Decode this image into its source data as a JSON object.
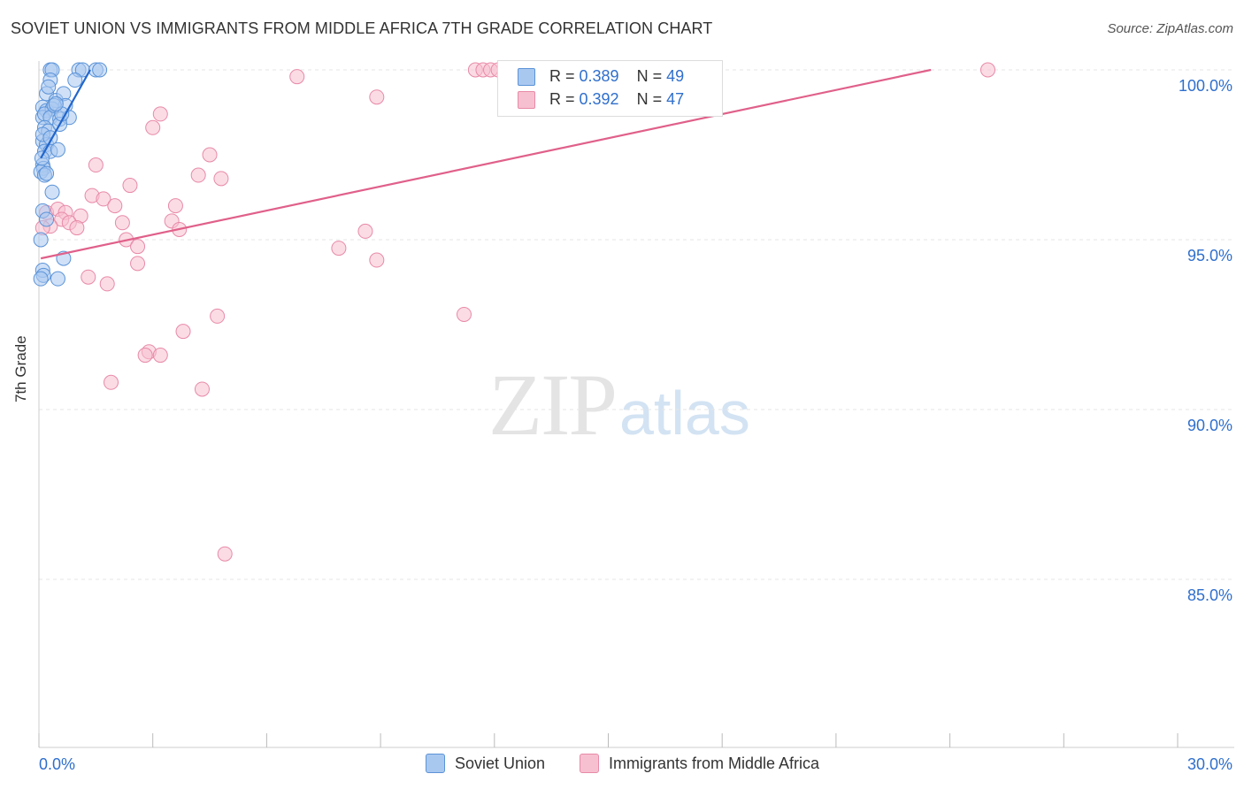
{
  "header": {
    "title": "SOVIET UNION VS IMMIGRANTS FROM MIDDLE AFRICA 7TH GRADE CORRELATION CHART",
    "source": "Source: ZipAtlas.com"
  },
  "watermark": {
    "zip": "ZIP",
    "atlas": "atlas"
  },
  "stats": {
    "series1": {
      "r_label": "R = ",
      "r_value": "0.389",
      "n_label": "N = ",
      "n_value": "49"
    },
    "series2": {
      "r_label": "R = ",
      "r_value": "0.392",
      "n_label": "N = ",
      "n_value": "47"
    }
  },
  "colors": {
    "series1_fill": "#a9c8f0",
    "series1_stroke": "#5b93d8",
    "series1_line": "#2266cc",
    "series2_fill": "#f7c0d0",
    "series2_stroke": "#e88aa8",
    "series2_line": "#e0608a",
    "axis_label": "#2f6fcc",
    "grid": "#e6e6e6"
  },
  "chart_data": {
    "type": "scatter",
    "title": "SOVIET UNION VS IMMIGRANTS FROM MIDDLE AFRICA 7TH GRADE CORRELATION CHART",
    "xlabel": "",
    "ylabel": "7th Grade",
    "xlim": [
      0,
      30
    ],
    "ylim": [
      80.5,
      100.2
    ],
    "x_tick_labels": [
      "0.0%",
      "30.0%"
    ],
    "y_ticks": [
      100,
      95,
      90,
      85
    ],
    "y_tick_labels": [
      "100.0%",
      "95.0%",
      "90.0%",
      "85.0%"
    ],
    "grid": true,
    "legend_position": "bottom",
    "series": [
      {
        "name": "Soviet Union",
        "points": [
          [
            0.3,
            100.0
          ],
          [
            0.35,
            100.0
          ],
          [
            1.05,
            100.0
          ],
          [
            1.15,
            100.0
          ],
          [
            1.5,
            100.0
          ],
          [
            1.6,
            100.0
          ],
          [
            0.3,
            99.7
          ],
          [
            0.95,
            99.7
          ],
          [
            0.2,
            99.3
          ],
          [
            0.45,
            99.1
          ],
          [
            0.65,
            99.3
          ],
          [
            0.1,
            98.9
          ],
          [
            0.2,
            98.8
          ],
          [
            0.35,
            98.85
          ],
          [
            0.7,
            98.95
          ],
          [
            0.1,
            98.6
          ],
          [
            0.15,
            98.7
          ],
          [
            0.3,
            98.6
          ],
          [
            0.55,
            98.55
          ],
          [
            0.8,
            98.6
          ],
          [
            0.15,
            98.3
          ],
          [
            0.25,
            98.2
          ],
          [
            0.55,
            98.4
          ],
          [
            0.1,
            97.9
          ],
          [
            0.2,
            97.8
          ],
          [
            0.15,
            97.6
          ],
          [
            0.3,
            97.6
          ],
          [
            0.5,
            97.65
          ],
          [
            0.1,
            97.2
          ],
          [
            0.12,
            97.1
          ],
          [
            0.05,
            97.0
          ],
          [
            0.15,
            96.9
          ],
          [
            0.35,
            96.4
          ],
          [
            0.1,
            95.85
          ],
          [
            0.2,
            95.6
          ],
          [
            0.05,
            95.0
          ],
          [
            0.65,
            94.45
          ],
          [
            0.1,
            94.1
          ],
          [
            0.12,
            93.95
          ],
          [
            0.5,
            93.85
          ],
          [
            0.05,
            93.85
          ],
          [
            0.1,
            98.1
          ],
          [
            0.4,
            98.95
          ],
          [
            0.25,
            99.5
          ],
          [
            0.6,
            98.7
          ],
          [
            0.3,
            98.0
          ],
          [
            0.08,
            97.4
          ],
          [
            0.2,
            96.95
          ],
          [
            0.45,
            99.0
          ]
        ],
        "trendline": [
          [
            0.05,
            97.4
          ],
          [
            1.35,
            100.0
          ]
        ]
      },
      {
        "name": "Immigrants from Middle Africa",
        "points": [
          [
            11.5,
            100.0
          ],
          [
            11.7,
            100.0
          ],
          [
            11.9,
            100.0
          ],
          [
            12.1,
            100.0
          ],
          [
            25.0,
            100.0
          ],
          [
            6.8,
            99.8
          ],
          [
            8.9,
            99.2
          ],
          [
            3.2,
            98.7
          ],
          [
            3.0,
            98.3
          ],
          [
            4.5,
            97.5
          ],
          [
            1.5,
            97.2
          ],
          [
            4.2,
            96.9
          ],
          [
            4.8,
            96.8
          ],
          [
            2.4,
            96.6
          ],
          [
            1.4,
            96.3
          ],
          [
            1.7,
            96.2
          ],
          [
            2.0,
            96.0
          ],
          [
            3.6,
            96.0
          ],
          [
            0.2,
            95.8
          ],
          [
            0.5,
            95.9
          ],
          [
            0.7,
            95.8
          ],
          [
            1.1,
            95.7
          ],
          [
            0.6,
            95.6
          ],
          [
            2.2,
            95.5
          ],
          [
            3.5,
            95.55
          ],
          [
            0.3,
            95.4
          ],
          [
            0.8,
            95.5
          ],
          [
            1.0,
            95.35
          ],
          [
            3.7,
            95.3
          ],
          [
            8.6,
            95.25
          ],
          [
            2.3,
            95.0
          ],
          [
            2.6,
            94.8
          ],
          [
            7.9,
            94.75
          ],
          [
            8.9,
            94.4
          ],
          [
            2.6,
            94.3
          ],
          [
            1.3,
            93.9
          ],
          [
            1.8,
            93.7
          ],
          [
            11.2,
            92.8
          ],
          [
            4.7,
            92.75
          ],
          [
            3.8,
            92.3
          ],
          [
            2.9,
            91.7
          ],
          [
            2.8,
            91.6
          ],
          [
            3.2,
            91.6
          ],
          [
            1.9,
            90.8
          ],
          [
            4.3,
            90.6
          ],
          [
            4.9,
            85.75
          ],
          [
            0.1,
            95.35
          ]
        ],
        "trendline": [
          [
            0.05,
            94.45
          ],
          [
            23.5,
            100.0
          ]
        ]
      }
    ]
  },
  "legend": {
    "item1": "Soviet Union",
    "item2": "Immigrants from Middle Africa"
  }
}
